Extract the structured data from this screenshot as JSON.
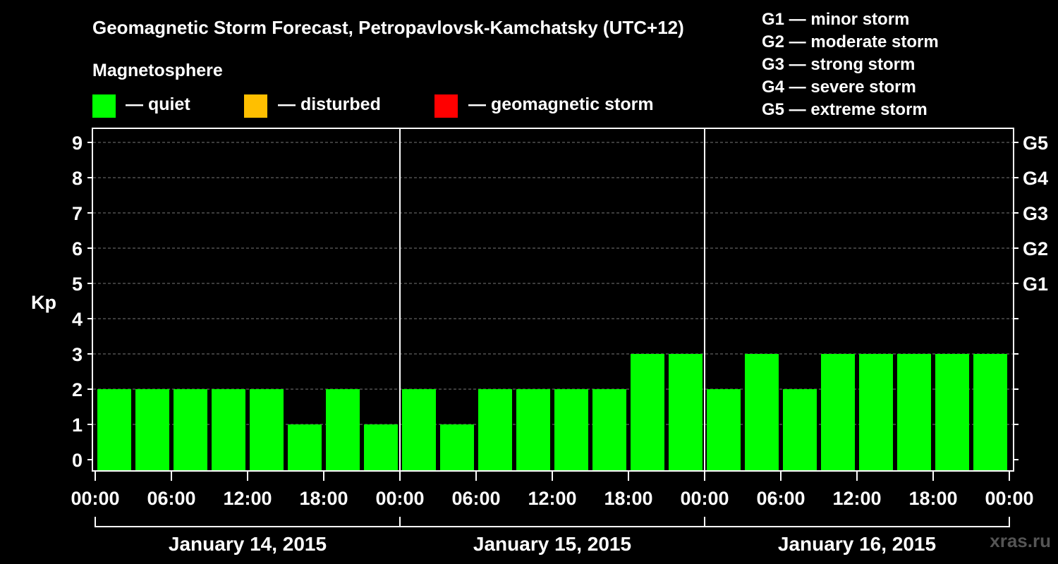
{
  "title": "Geomagnetic Storm Forecast, Petropavlovsk-Kamchatsky (UTC+12)",
  "legend": {
    "heading": "Magnetosphere",
    "items": [
      {
        "label": "— quiet",
        "color": "#00ff00"
      },
      {
        "label": "— disturbed",
        "color": "#ffbf00"
      },
      {
        "label": "— geomagnetic storm",
        "color": "#ff0000"
      }
    ]
  },
  "storm_scale": [
    "G1 — minor storm",
    "G2 — moderate storm",
    "G3 — strong storm",
    "G4 — severe storm",
    "G5 — extreme storm"
  ],
  "watermark": "xras.ru",
  "chart_data": {
    "type": "bar",
    "title": "Geomagnetic Storm Forecast, Petropavlovsk-Kamchatsky (UTC+12)",
    "ylabel": "Kp",
    "xlabel": "",
    "ylim": [
      0,
      9
    ],
    "yticks": [
      "0",
      "1",
      "2",
      "3",
      "4",
      "5",
      "6",
      "7",
      "8",
      "9"
    ],
    "right_axis_labels": [
      {
        "kp": 5,
        "label": "G1"
      },
      {
        "kp": 6,
        "label": "G2"
      },
      {
        "kp": 7,
        "label": "G3"
      },
      {
        "kp": 8,
        "label": "G4"
      },
      {
        "kp": 9,
        "label": "G5"
      }
    ],
    "xtick_labels": [
      "00:00",
      "06:00",
      "12:00",
      "18:00",
      "00:00",
      "06:00",
      "12:00",
      "18:00",
      "00:00",
      "06:00",
      "12:00",
      "18:00",
      "00:00"
    ],
    "days": [
      "January 14, 2015",
      "January 15, 2015",
      "January 16, 2015"
    ],
    "interval_hours": 3,
    "values": [
      2,
      2,
      2,
      2,
      2,
      1,
      2,
      1,
      2,
      1,
      2,
      2,
      2,
      2,
      3,
      3,
      2,
      3,
      2,
      3,
      3,
      3,
      3,
      3
    ],
    "bar_color": "#00ff00",
    "grid": true
  }
}
